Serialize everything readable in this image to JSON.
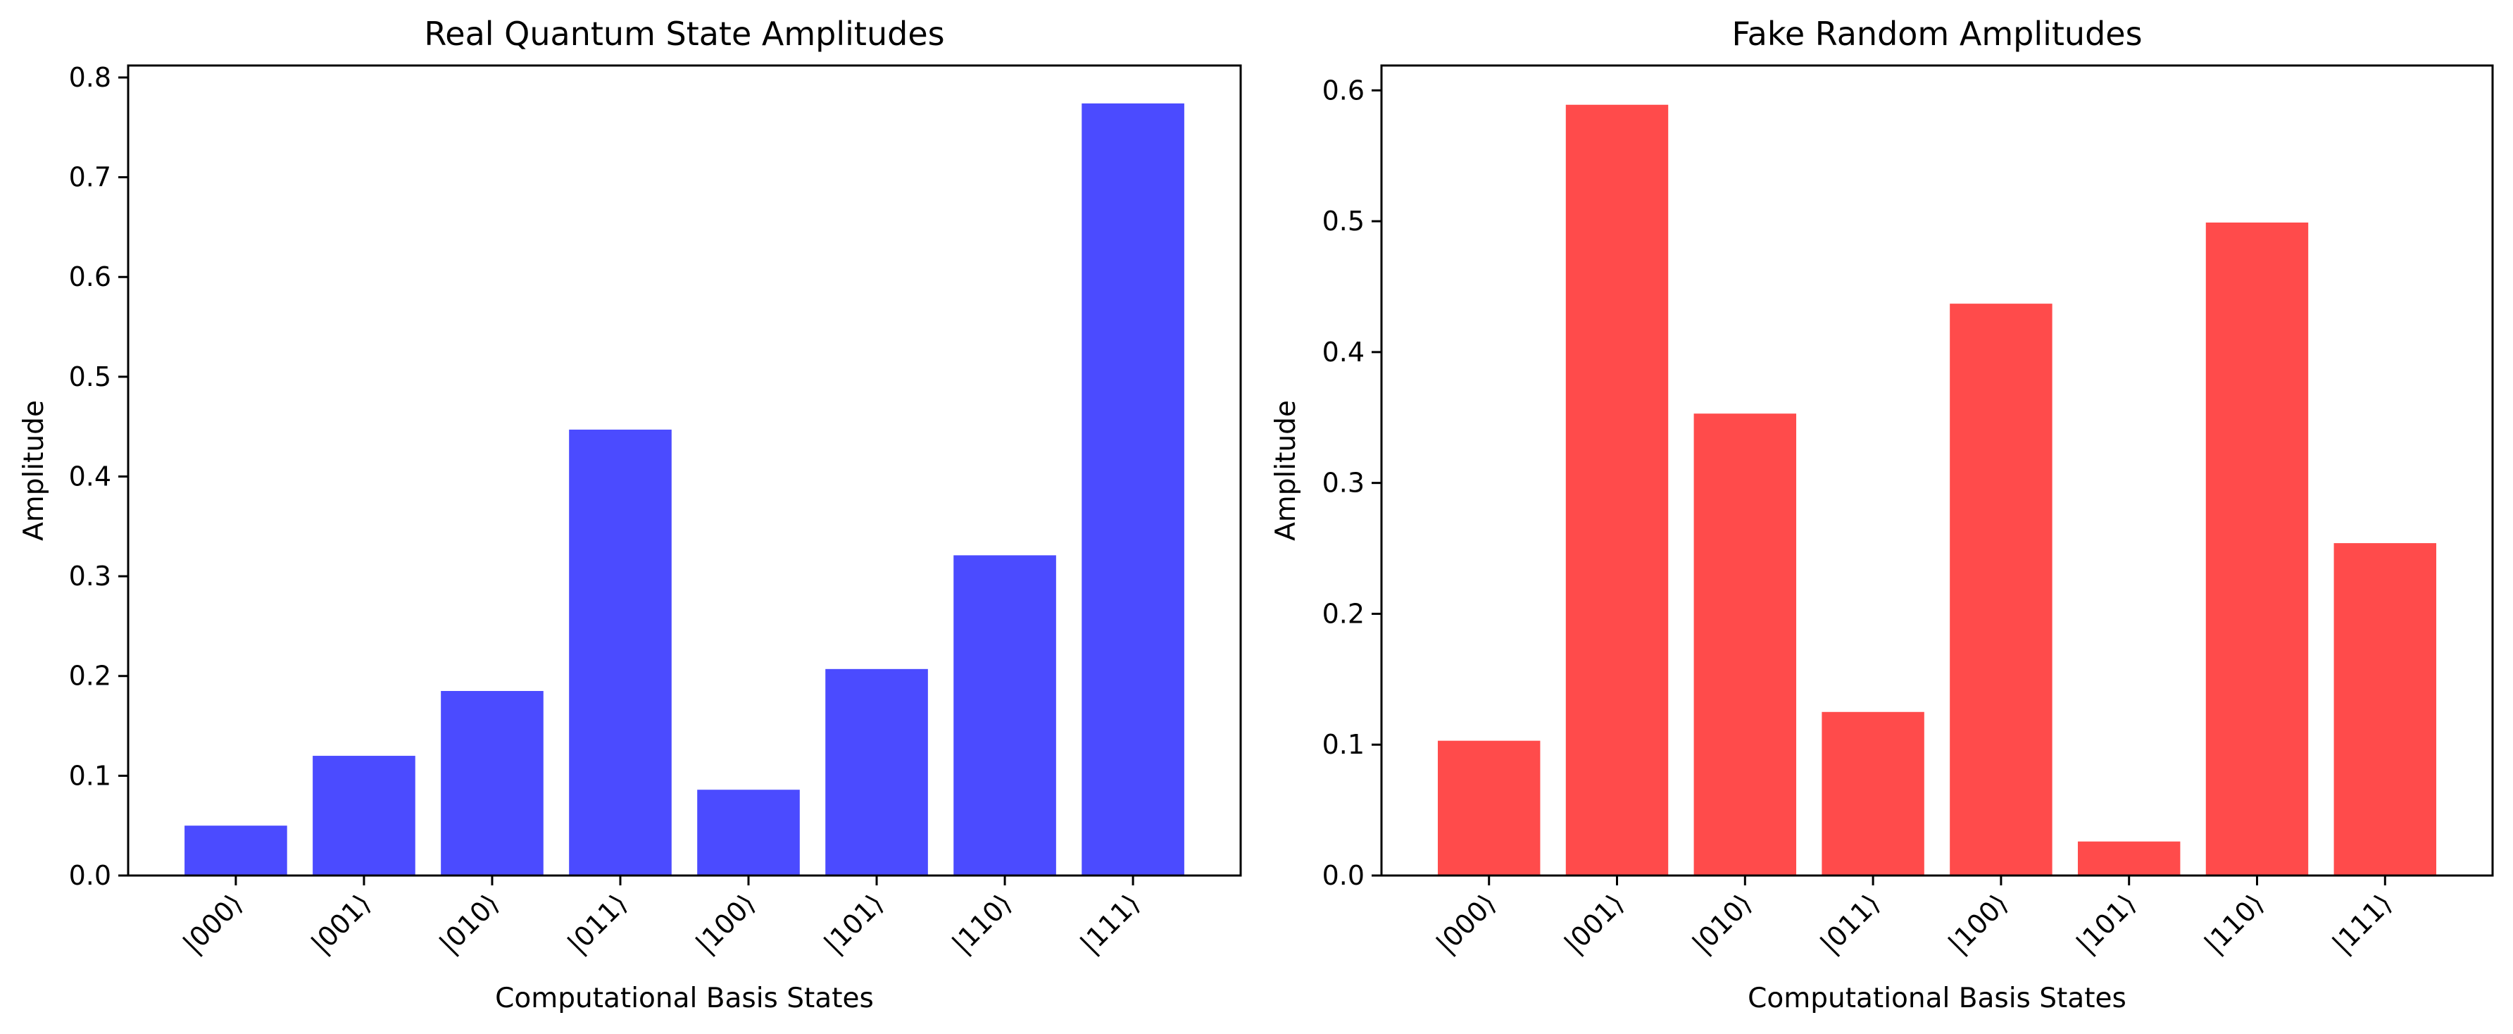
{
  "chart_data": [
    {
      "type": "bar",
      "title": "Real Quantum State Amplitudes",
      "xlabel": "Computational Basis States",
      "ylabel": "Amplitude",
      "categories": [
        "|000⟩",
        "|001⟩",
        "|010⟩",
        "|011⟩",
        "|100⟩",
        "|101⟩",
        "|110⟩",
        "|111⟩"
      ],
      "values": [
        0.05,
        0.12,
        0.185,
        0.447,
        0.086,
        0.207,
        0.321,
        0.774
      ],
      "ylim": [
        0,
        0.812
      ],
      "yticks": [
        0.0,
        0.1,
        0.2,
        0.3,
        0.4,
        0.5,
        0.6,
        0.7,
        0.8
      ],
      "ytick_labels": [
        "0.0",
        "0.1",
        "0.2",
        "0.3",
        "0.4",
        "0.5",
        "0.6",
        "0.7",
        "0.8"
      ],
      "color": "#4b4bff",
      "grid": false
    },
    {
      "type": "bar",
      "title": "Fake Random Amplitudes",
      "xlabel": "Computational Basis States",
      "ylabel": "Amplitude",
      "categories": [
        "|000⟩",
        "|001⟩",
        "|010⟩",
        "|011⟩",
        "|100⟩",
        "|101⟩",
        "|110⟩",
        "|111⟩"
      ],
      "values": [
        0.103,
        0.589,
        0.353,
        0.125,
        0.437,
        0.026,
        0.499,
        0.254
      ],
      "ylim": [
        0,
        0.619
      ],
      "yticks": [
        0.0,
        0.1,
        0.2,
        0.3,
        0.4,
        0.5,
        0.6
      ],
      "ytick_labels": [
        "0.0",
        "0.1",
        "0.2",
        "0.3",
        "0.4",
        "0.5",
        "0.6"
      ],
      "color": "#ff4b4b",
      "grid": false
    }
  ]
}
